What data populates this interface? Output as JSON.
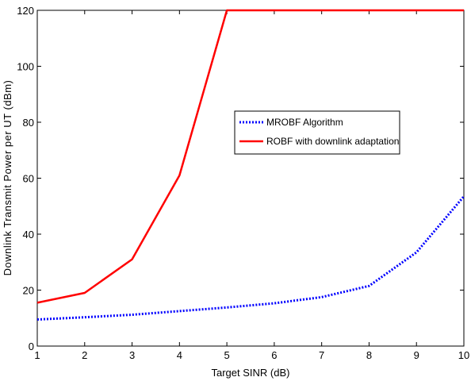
{
  "chart_data": {
    "type": "line",
    "xlabel": "Target SINR (dB)",
    "ylabel": "Downlink Transmit Power per UT (dBm)",
    "xlim": [
      1,
      10
    ],
    "ylim": [
      0,
      120
    ],
    "xticks": [
      1,
      2,
      3,
      4,
      5,
      6,
      7,
      8,
      9,
      10
    ],
    "yticks": [
      0,
      20,
      40,
      60,
      80,
      100,
      120
    ],
    "grid": false,
    "legend_position": "center-right",
    "series": [
      {
        "name": "MROBF Algorithm",
        "color": "#0000ff",
        "style": "dotted",
        "x": [
          1,
          2,
          3,
          4,
          5,
          6,
          7,
          8,
          9,
          10
        ],
        "y": [
          9.5,
          10.3,
          11.2,
          12.5,
          13.8,
          15.3,
          17.5,
          21.5,
          33.5,
          53.5
        ]
      },
      {
        "name": "ROBF with downlink adaptation",
        "color": "#ff0000",
        "style": "solid",
        "x": [
          1,
          2,
          3,
          4,
          5,
          6,
          7,
          8,
          9,
          10
        ],
        "y": [
          15.5,
          19,
          31,
          61,
          120,
          120,
          120,
          120,
          120,
          120
        ]
      }
    ]
  }
}
